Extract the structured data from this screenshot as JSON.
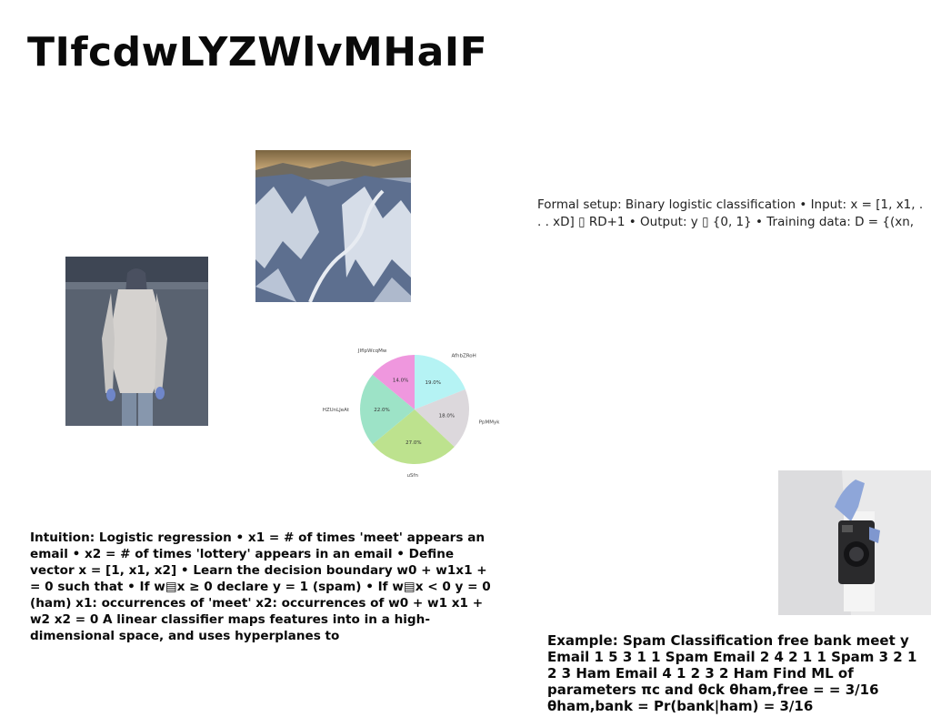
{
  "title": "TIfcdwLYZWlvMHaIF",
  "formal_text": "Formal setup: Binary logistic classification • Input: x = [1, x1, . . . xD] ▯ RD+1 • Output: y ▯ {0, 1} • Training data: D = {(xn,",
  "intuition_text": "Intuition: Logistic regression • x1 = # of times 'meet' appears an email • x2 = # of times 'lottery' appears in an email • Define vector x = [1, x1, x2] • Learn the decision boundary w0 + w1x1 + = 0 such that • If w▤x ≥ 0 declare y = 1 (spam) • If w▤x < 0 y = 0 (ham) x1: occurrences of 'meet' x2: occurrences of w0 + w1 x1 + w2 x2 = 0 A linear classifier maps features into in a high-dimensional space, and uses hyperplanes to",
  "example_text": "Example: Spam Classification free bank meet y Email 1 5 3 1 1 Spam Email 2 4 2 1 1 Spam 3 2 1 2 3 Ham Email 4 1 2 3 2 Ham Find ML of parameters πc and θck θham,free = = 3/16 θham,bank = Pr(bank|ham) = 3/16",
  "images": {
    "mountain": "snowy-mountain-road-photo",
    "person": "person-in-sweater-photo",
    "camera": "hand-holding-camera-photo"
  },
  "chart_data": {
    "type": "pie",
    "title": "",
    "categories": [
      "AfhbZRoH",
      "PpMMyk",
      "uSfn",
      "HZUnLJeAt",
      "JIfIpWcqMw"
    ],
    "values": [
      19.0,
      18.0,
      27.0,
      22.0,
      14.0
    ],
    "value_labels": [
      "19.0%",
      "18.0%",
      "27.0%",
      "22.0%",
      "14.0%"
    ],
    "colors": [
      "#b5f3f4",
      "#dcd8dc",
      "#bde28e",
      "#9de3c7",
      "#ef97de"
    ],
    "start_angle_deg": 90,
    "direction": "clockwise"
  }
}
